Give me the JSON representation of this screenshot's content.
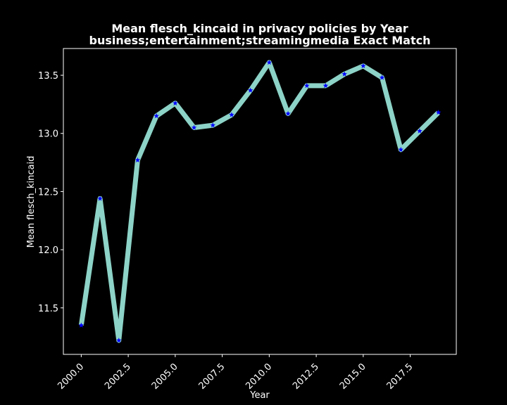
{
  "chart_data": {
    "type": "line",
    "title_line1": "Mean flesch_kincaid in privacy policies by Year",
    "title_line2": "business;entertainment;streamingmedia Exact Match",
    "xlabel": "Year",
    "ylabel": "Mean flesch_kincaid",
    "xlim": [
      1999.05,
      2019.95
    ],
    "ylim": [
      11.1,
      13.73
    ],
    "xticks": [
      2000.0,
      2002.5,
      2005.0,
      2007.5,
      2010.0,
      2012.5,
      2015.0,
      2017.5
    ],
    "xtick_labels": [
      "2000.0",
      "2002.5",
      "2005.0",
      "2007.5",
      "2010.0",
      "2012.5",
      "2015.0",
      "2017.5"
    ],
    "yticks": [
      11.5,
      12.0,
      12.5,
      13.0,
      13.5
    ],
    "ytick_labels": [
      "11.5",
      "12.0",
      "12.5",
      "13.0",
      "13.5"
    ],
    "grid": false,
    "x": [
      2000,
      2001,
      2002,
      2003,
      2004,
      2005,
      2006,
      2007,
      2008,
      2009,
      2010,
      2011,
      2012,
      2013,
      2014,
      2015,
      2016,
      2017,
      2018,
      2019
    ],
    "series": [
      {
        "values": [
          11.35,
          12.44,
          11.22,
          12.77,
          13.15,
          13.26,
          13.05,
          13.07,
          13.16,
          13.37,
          13.61,
          13.17,
          13.41,
          13.41,
          13.51,
          13.58,
          13.48,
          12.86,
          13.02,
          13.18
        ]
      }
    ],
    "colors": {
      "background": "#000000",
      "line": "#8dd3c7",
      "marker": "#0000ff",
      "axes": "#ffffff",
      "text": "#ffffff"
    }
  }
}
